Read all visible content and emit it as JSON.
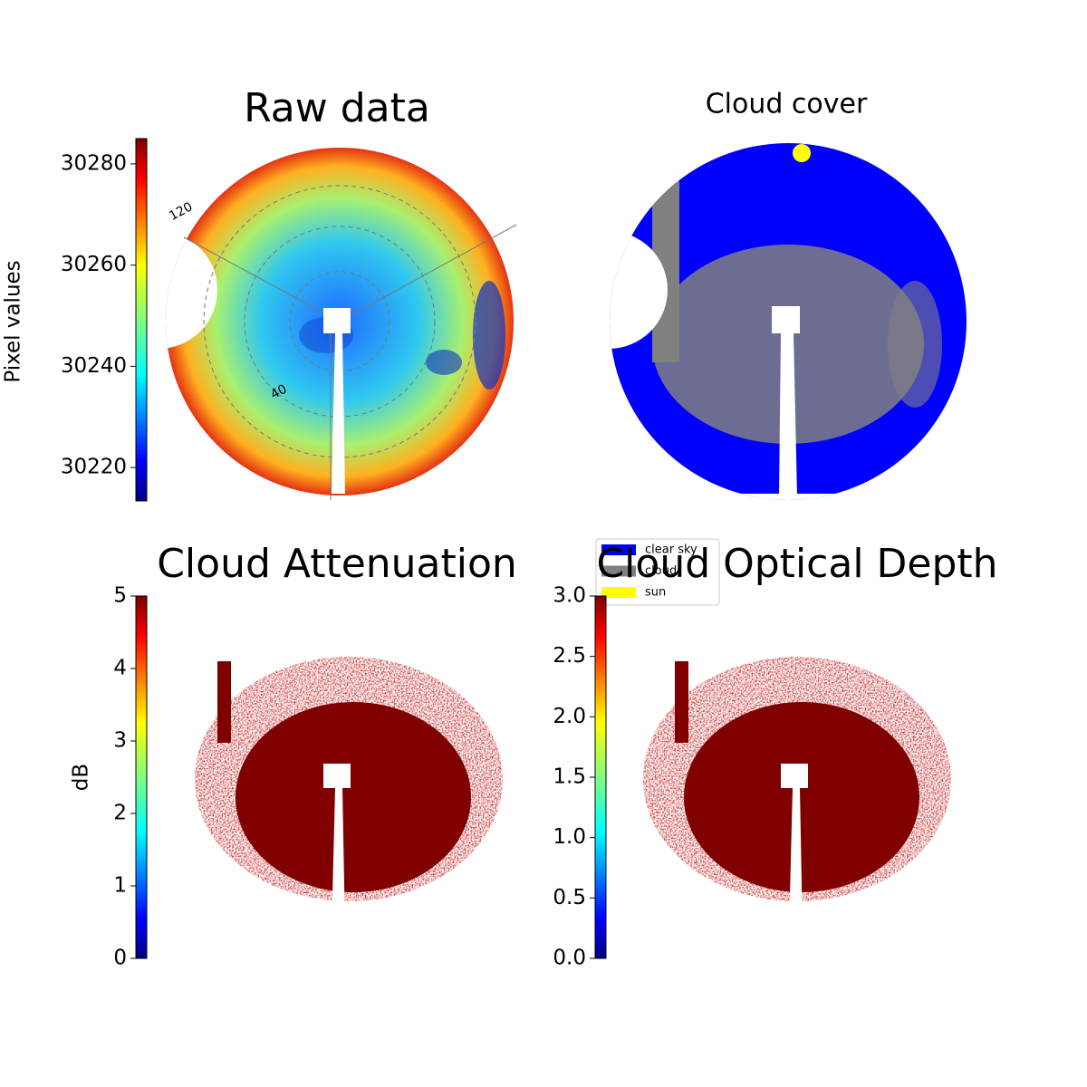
{
  "chart_data": [
    {
      "type": "image",
      "title": "Raw data",
      "colormap": "jet",
      "ylabel": "Pixel values",
      "ylim": [
        30213.4,
        30285
      ],
      "yticks": [
        30220,
        30240,
        30260,
        30280
      ],
      "annotations": [
        "120",
        "40"
      ]
    },
    {
      "type": "classes",
      "title": "Cloud cover",
      "series": [
        {
          "name": "clear sky",
          "color": "#0000ff"
        },
        {
          "name": "cloud",
          "color": "#808080"
        },
        {
          "name": "sun",
          "color": "#ffff00"
        }
      ]
    },
    {
      "type": "image",
      "title": "Cloud Attenuation",
      "colormap": "jet",
      "ylabel": "dB",
      "ylim": [
        0,
        5
      ],
      "yticks": [
        0,
        1,
        2,
        3,
        4,
        5
      ]
    },
    {
      "type": "image",
      "title": "Cloud Optical Depth",
      "colormap": "jet",
      "ylim": [
        0,
        3
      ],
      "yticks": [
        {
          "value": 0,
          "label": "0.0"
        },
        0.5,
        {
          "value": 1,
          "label": "1.0"
        },
        1.5,
        {
          "value": 2,
          "label": "2.0"
        },
        2.5,
        {
          "value": 3,
          "label": "3.0"
        }
      ]
    }
  ]
}
